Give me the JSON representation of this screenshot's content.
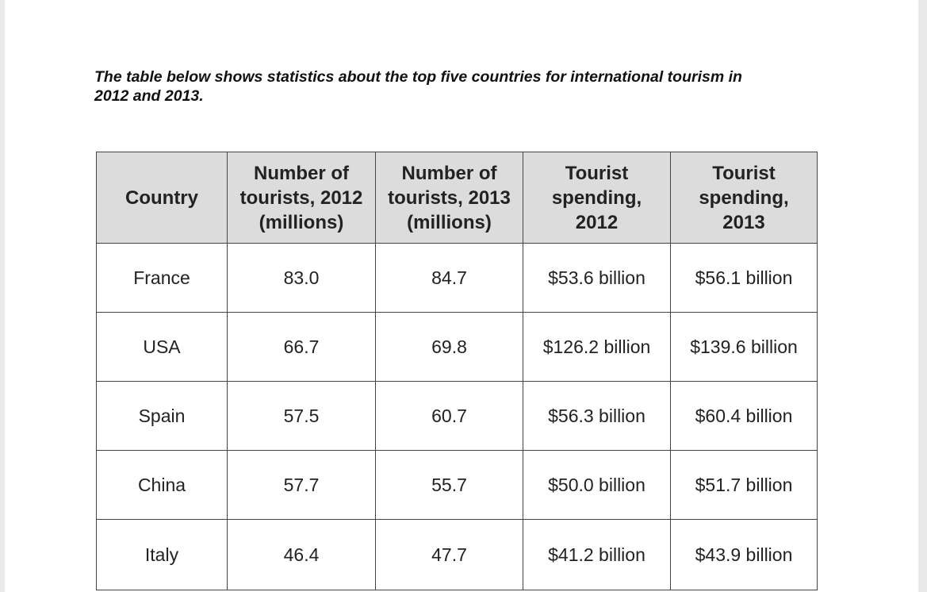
{
  "prompt": {
    "line1": "The table below shows statistics about the top five countries for international tourism in",
    "line2": "2012 and 2013."
  },
  "table": {
    "headers": [
      {
        "lines": [
          "Country"
        ]
      },
      {
        "lines": [
          "Number of",
          "tourists, 2012",
          "(millions)"
        ]
      },
      {
        "lines": [
          "Number of",
          "tourists, 2013",
          "(millions)"
        ]
      },
      {
        "lines": [
          "Tourist",
          "spending,",
          "2012"
        ]
      },
      {
        "lines": [
          "Tourist",
          "spending,",
          "2013"
        ]
      }
    ],
    "rows": [
      [
        "France",
        "83.0",
        "84.7",
        "$53.6 billion",
        "$56.1 billion"
      ],
      [
        "USA",
        "66.7",
        "69.8",
        "$126.2 billion",
        "$139.6 billion"
      ],
      [
        "Spain",
        "57.5",
        "60.7",
        "$56.3 billion",
        "$60.4 billion"
      ],
      [
        "China",
        "57.7",
        "55.7",
        "$50.0 billion",
        "$51.7 billion"
      ],
      [
        "Italy",
        "46.4",
        "47.7",
        "$41.2 billion",
        "$43.9 billion"
      ]
    ]
  },
  "colors": {
    "header_background": "#dcdcdc",
    "border": "#444444"
  }
}
